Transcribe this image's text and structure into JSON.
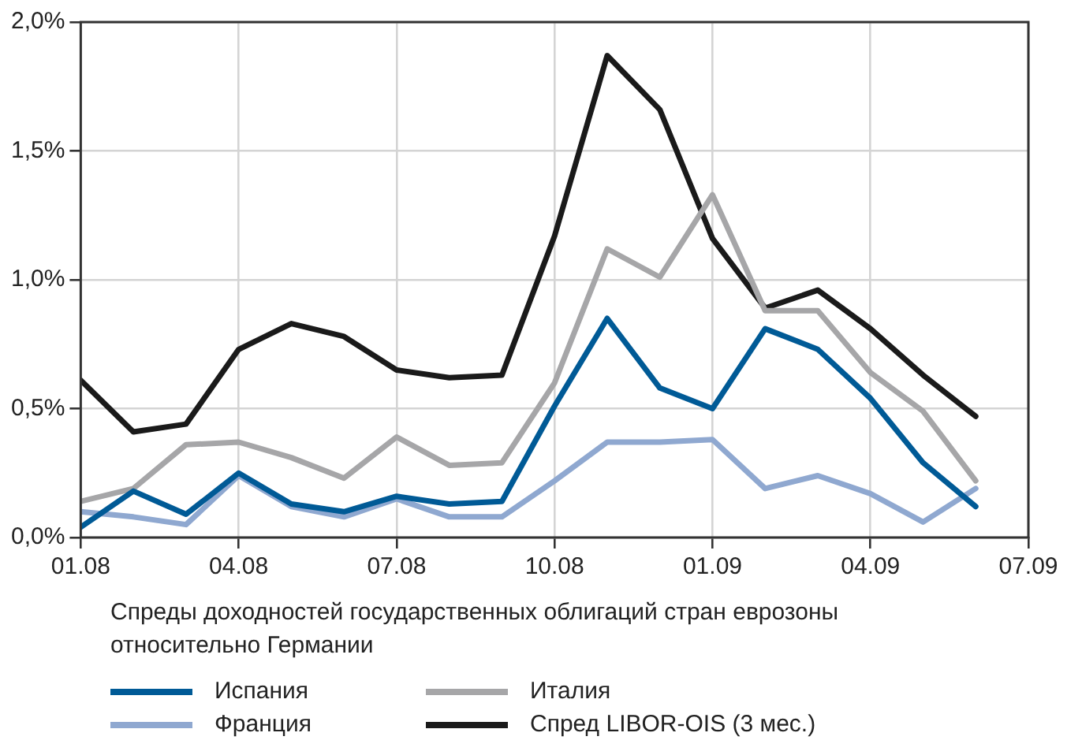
{
  "chart_data": {
    "type": "line",
    "legend_title": "Спреды доходностей государственных облигаций стран еврозоны относительно Германии",
    "x": [
      "2008-01",
      "2008-02",
      "2008-03",
      "2008-04",
      "2008-05",
      "2008-06",
      "2008-07",
      "2008-08",
      "2008-09",
      "2008-10",
      "2008-11",
      "2008-12",
      "2009-01",
      "2009-02",
      "2009-03",
      "2009-04",
      "2009-05",
      "2009-06"
    ],
    "series": [
      {
        "name": "Испания",
        "color": "#005a96",
        "values": [
          0.04,
          0.18,
          0.09,
          0.25,
          0.13,
          0.1,
          0.16,
          0.13,
          0.14,
          0.51,
          0.85,
          0.58,
          0.5,
          0.81,
          0.73,
          0.54,
          0.29,
          0.12
        ]
      },
      {
        "name": "Италия",
        "color": "#a6a6a8",
        "values": [
          0.14,
          0.19,
          0.36,
          0.37,
          0.31,
          0.23,
          0.39,
          0.28,
          0.29,
          0.6,
          1.12,
          1.01,
          1.33,
          0.88,
          0.88,
          0.64,
          0.49,
          0.22
        ]
      },
      {
        "name": "Франция",
        "color": "#8fa8d0",
        "values": [
          0.1,
          0.08,
          0.05,
          0.24,
          0.12,
          0.08,
          0.15,
          0.08,
          0.08,
          0.22,
          0.37,
          0.37,
          0.38,
          0.19,
          0.24,
          0.17,
          0.06,
          0.19
        ]
      },
      {
        "name": "Спред LIBOR-OIS (3 мес.)",
        "color": "#1a1a1a",
        "values": [
          0.61,
          0.41,
          0.44,
          0.73,
          0.83,
          0.78,
          0.65,
          0.62,
          0.63,
          1.17,
          1.87,
          1.66,
          1.16,
          0.89,
          0.96,
          0.81,
          0.63,
          0.47
        ]
      }
    ],
    "xlim": [
      "2008-01",
      "2009-07"
    ],
    "xticks": [
      {
        "value": "2008-01",
        "label": "01.08"
      },
      {
        "value": "2008-04",
        "label": "04.08"
      },
      {
        "value": "2008-07",
        "label": "07.08"
      },
      {
        "value": "2008-10",
        "label": "10.08"
      },
      {
        "value": "2009-01",
        "label": "01.09"
      },
      {
        "value": "2009-04",
        "label": "04.09"
      },
      {
        "value": "2009-07",
        "label": "07.09"
      }
    ],
    "ylim": [
      0,
      2
    ],
    "yticks": [
      {
        "value": 0,
        "label": "0,0%"
      },
      {
        "value": 0.5,
        "label": "0,5%"
      },
      {
        "value": 1,
        "label": "1,0%"
      },
      {
        "value": 1.5,
        "label": "1,5%"
      },
      {
        "value": 2,
        "label": "2,0%"
      }
    ],
    "grid": true,
    "legend": "bottom",
    "marker": "none",
    "line_style": "solid"
  }
}
